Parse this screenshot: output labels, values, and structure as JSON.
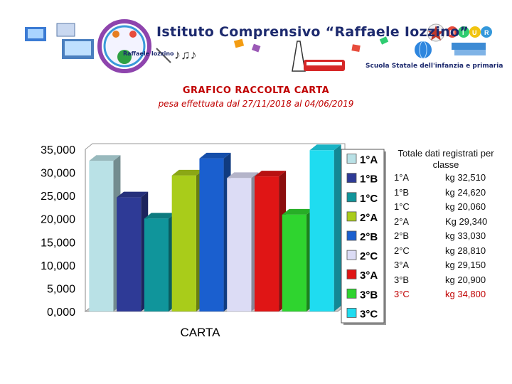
{
  "header": {
    "school_name": "Istituto Comprensivo “Raffaele Iozzino”",
    "school_subtitle": "Scuola Statale dell'infanzia e primaria",
    "logo_text": "Raffaele Iozzino",
    "miur_letters": [
      "M",
      "I",
      "U",
      "R"
    ]
  },
  "title": "GRAFICO RACCOLTA CARTA",
  "subtitle": "pesa effettuata dal 27/11/2018 al 04/06/2019",
  "colors": {
    "title": "#c00000",
    "highlight_row": "#c00000"
  },
  "chart_data": {
    "type": "bar",
    "categories": [
      "1°A",
      "1°B",
      "1°C",
      "2°A",
      "2°B",
      "2°C",
      "3°A",
      "3°B",
      "3°C"
    ],
    "values": [
      32.51,
      24.62,
      20.06,
      29.34,
      33.03,
      28.81,
      29.15,
      20.9,
      34.8
    ],
    "colors": [
      "#b9e1e6",
      "#2e3a96",
      "#10959b",
      "#a9cc1a",
      "#1a5fcf",
      "#dcdcf5",
      "#e01515",
      "#2fd42f",
      "#1fdcf0"
    ],
    "xlabel": "CARTA",
    "ylabel": "",
    "ylim": [
      0,
      35
    ],
    "yticks": [
      "0,000",
      "5,000",
      "10,000",
      "15,000",
      "20,000",
      "25,000",
      "30,000",
      "35,000"
    ],
    "grid": false,
    "legend": "right"
  },
  "totals": {
    "heading": "Totale dati registrati per classe",
    "rows": [
      {
        "cls": "1°A",
        "val": "kg 32,510",
        "highlight": false
      },
      {
        "cls": "1°B",
        "val": "kg 24,620",
        "highlight": false
      },
      {
        "cls": "1°C",
        "val": "kg 20,060",
        "highlight": false
      },
      {
        "cls": "2°A",
        "val": "Kg 29,340",
        "highlight": false
      },
      {
        "cls": "2°B",
        "val": "kg 33,030",
        "highlight": false
      },
      {
        "cls": "2°C",
        "val": "kg 28,810",
        "highlight": false
      },
      {
        "cls": "3°A",
        "val": "kg 29,150",
        "highlight": false
      },
      {
        "cls": "3°B",
        "val": "kg 20,900",
        "highlight": false
      },
      {
        "cls": "3°C",
        "val": "kg 34,800",
        "highlight": true
      }
    ]
  }
}
